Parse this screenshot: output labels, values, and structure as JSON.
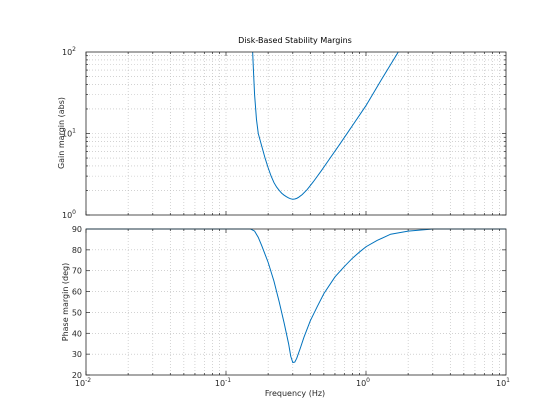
{
  "colors": {
    "line": "#0072bd",
    "axis": "#262626",
    "grid": "#b8b8b8",
    "background": "#ffffff"
  },
  "chart_data": [
    {
      "type": "line",
      "title": "Disk-Based Stability Margins",
      "xlabel": "",
      "ylabel": "Gain margin (abs)",
      "xscale": "log",
      "yscale": "log",
      "xlim": [
        0.01,
        10
      ],
      "ylim": [
        1,
        100
      ],
      "grid": true,
      "yticks": [
        {
          "value": 1,
          "base": "10",
          "exp": "0"
        },
        {
          "value": 10,
          "base": "10",
          "exp": "1"
        },
        {
          "value": 100,
          "base": "10",
          "exp": "2"
        }
      ],
      "series": [
        {
          "x": [
            0.155,
            0.157,
            0.16,
            0.165,
            0.17,
            0.18,
            0.19,
            0.2,
            0.21,
            0.22,
            0.23,
            0.24,
            0.25,
            0.26,
            0.27,
            0.28,
            0.29,
            0.3,
            0.31,
            0.32,
            0.33,
            0.35,
            0.38,
            0.42,
            0.48,
            0.55,
            0.65,
            0.8,
            1.0,
            1.3,
            1.7
          ],
          "y": [
            100,
            60,
            30,
            15,
            10,
            7.0,
            5.0,
            3.8,
            3.0,
            2.5,
            2.2,
            2.0,
            1.85,
            1.75,
            1.68,
            1.62,
            1.58,
            1.56,
            1.57,
            1.6,
            1.65,
            1.78,
            2.05,
            2.55,
            3.5,
            4.9,
            7.4,
            12.5,
            22,
            47,
            100
          ]
        }
      ]
    },
    {
      "type": "line",
      "title": "",
      "xlabel": "Frequency (Hz)",
      "ylabel": "Phase margin (deg)",
      "xscale": "log",
      "yscale": "linear",
      "xlim": [
        0.01,
        10
      ],
      "ylim": [
        20,
        90
      ],
      "grid": true,
      "yticks": [
        20,
        30,
        40,
        50,
        60,
        70,
        80,
        90
      ],
      "xticks": [
        {
          "value": 0.01,
          "base": "10",
          "exp": "-2"
        },
        {
          "value": 0.1,
          "base": "10",
          "exp": "-1"
        },
        {
          "value": 1,
          "base": "10",
          "exp": "0"
        },
        {
          "value": 10,
          "base": "10",
          "exp": "1"
        }
      ],
      "series": [
        {
          "x": [
            0.01,
            0.05,
            0.1,
            0.15,
            0.16,
            0.17,
            0.18,
            0.2,
            0.22,
            0.24,
            0.26,
            0.28,
            0.29,
            0.3,
            0.31,
            0.32,
            0.34,
            0.36,
            0.4,
            0.45,
            0.5,
            0.6,
            0.7,
            0.8,
            0.9,
            1.0,
            1.2,
            1.5,
            2.0,
            3.0,
            5.0,
            10.0
          ],
          "y": [
            90,
            90,
            90,
            90,
            89,
            86,
            82,
            74,
            65,
            55,
            45,
            35,
            29,
            26,
            26.2,
            28,
            33,
            38,
            46,
            53,
            59,
            67,
            72,
            76,
            79,
            81.5,
            84.5,
            87.5,
            89,
            90,
            90,
            90
          ]
        }
      ]
    }
  ]
}
